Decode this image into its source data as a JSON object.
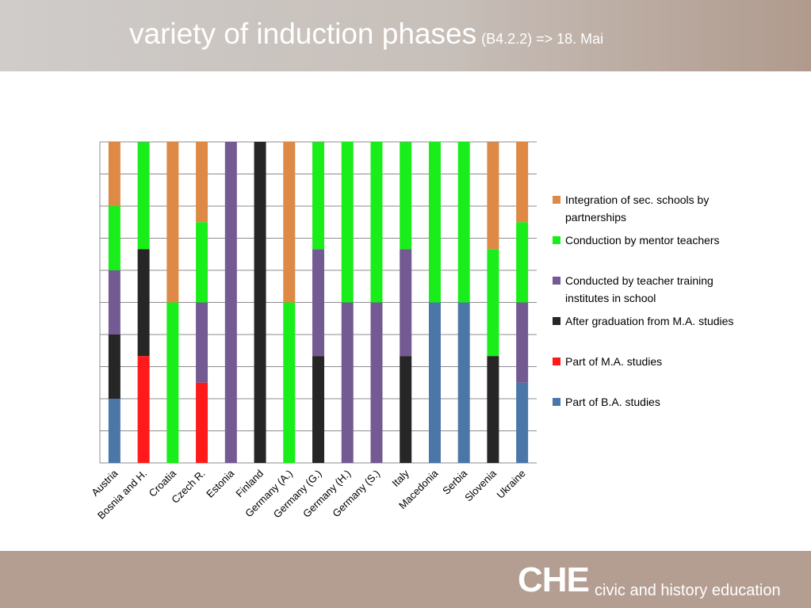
{
  "slide": {
    "title": "variety of induction phases",
    "title_note": "(B4.2.2) => 18. Mai"
  },
  "footer": {
    "logo_che": "CHE",
    "logo_text": "civic and history education"
  },
  "colors": {
    "header_gradient": [
      "#cfccca",
      "#b09a8d"
    ],
    "footer_bg": "#b49e92"
  },
  "chart_data": {
    "type": "bar",
    "stacked": true,
    "normalized": true,
    "grid": true,
    "legend_position": "right",
    "ylim": [
      0,
      1
    ],
    "categories": [
      "Austria",
      "Bosnia and H.",
      "Croatia",
      "Czech R.",
      "Estonia",
      "Finland",
      "Germany (A.)",
      "Germany (G.)",
      "Germany (H.)",
      "Germany (S.)",
      "Italy",
      "Macedonia",
      "Serbia",
      "Slovenia",
      "Ukraine"
    ],
    "series": [
      {
        "name": "Part of B.A. studies",
        "color": "#4a76a8",
        "values": [
          0.2,
          0,
          0,
          0,
          0,
          0,
          0,
          0,
          0,
          0,
          0,
          0.5,
          0.5,
          0,
          0.25
        ]
      },
      {
        "name": "Part of M.A. studies",
        "color": "#ff1a1a",
        "values": [
          0,
          0.333,
          0,
          0.25,
          0,
          0,
          0,
          0,
          0,
          0,
          0,
          0,
          0,
          0,
          0
        ]
      },
      {
        "name": "After graduation from M.A. studies",
        "color": "#262626",
        "values": [
          0.2,
          0.333,
          0,
          0,
          0,
          1,
          0,
          0.333,
          0,
          0,
          0.333,
          0,
          0,
          0.333,
          0
        ]
      },
      {
        "name": "Conducted by teacher training institutes in school",
        "color": "#745a93",
        "values": [
          0.2,
          0,
          0,
          0.25,
          1,
          0,
          0,
          0.333,
          0.5,
          0.5,
          0.333,
          0,
          0,
          0,
          0.25
        ]
      },
      {
        "name": "Conduction by mentor teachers",
        "color": "#1aee1a",
        "values": [
          0.2,
          0.333,
          0.5,
          0.25,
          0,
          0,
          0.5,
          0.333,
          0.5,
          0.5,
          0.333,
          0.5,
          0.5,
          0.333,
          0.25
        ]
      },
      {
        "name": "Integration of sec. schools by partnerships",
        "color": "#de8a46",
        "values": [
          0.2,
          0,
          0.5,
          0.25,
          0,
          0,
          0.5,
          0,
          0,
          0,
          0,
          0,
          0,
          0.333,
          0.25
        ]
      }
    ],
    "legend_order": [
      5,
      4,
      3,
      2,
      1,
      0
    ],
    "legend_labels": [
      [
        "Integration of sec. schools by",
        "partnerships"
      ],
      [
        "Conduction by mentor teachers"
      ],
      [
        "Conducted by teacher training",
        "institutes in school"
      ],
      [
        "After graduation from M.A. studies"
      ],
      [
        "Part of M.A. studies"
      ],
      [
        "Part of B.A. studies"
      ]
    ]
  }
}
